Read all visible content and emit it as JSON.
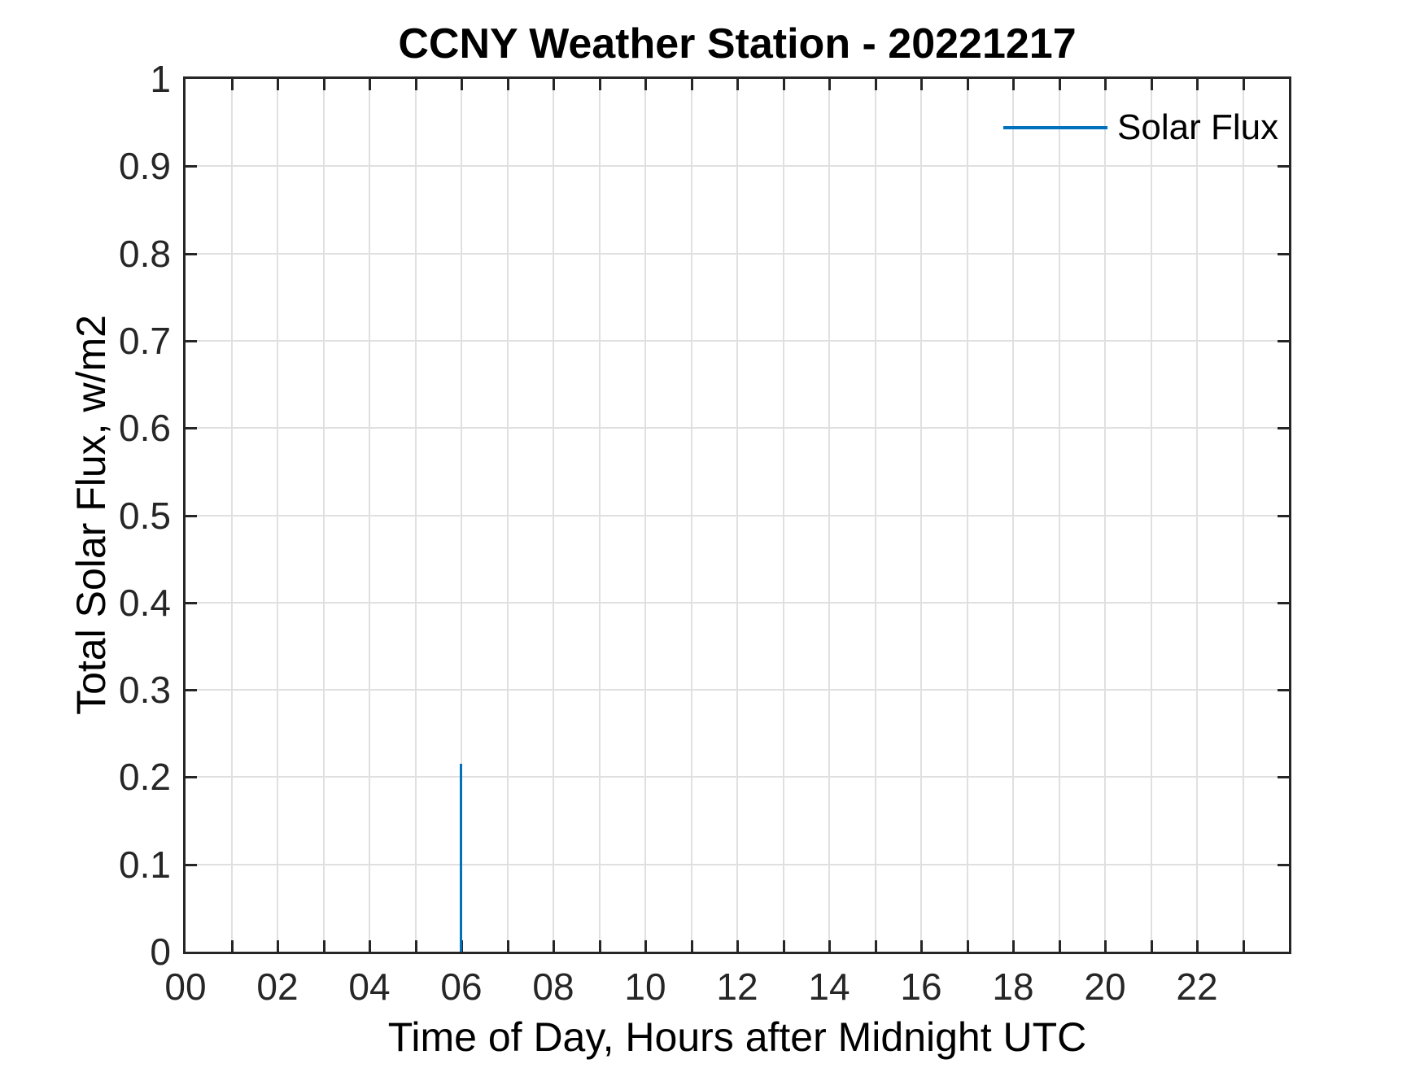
{
  "figure": {
    "background": "#ffffff",
    "axis_color": "#262626",
    "grid_color": "#e0e0e0",
    "accent_blue": "#0072BD"
  },
  "chart_data": {
    "type": "line",
    "title": "CCNY Weather Station - 20221217",
    "xlabel": "Time of Day, Hours after Midnight UTC",
    "ylabel": "Total Solar Flux, w/m2",
    "xlim": [
      0,
      24
    ],
    "ylim": [
      0,
      1
    ],
    "x_grid_step": 1,
    "y_grid_step": 0.1,
    "grid": true,
    "x_tick_values": [
      0,
      2,
      4,
      6,
      8,
      10,
      12,
      14,
      16,
      18,
      20,
      22
    ],
    "x_tick_labels": [
      "00",
      "02",
      "04",
      "06",
      "08",
      "10",
      "12",
      "14",
      "16",
      "18",
      "20",
      "22"
    ],
    "y_tick_values": [
      0,
      0.1,
      0.2,
      0.3,
      0.4,
      0.5,
      0.6,
      0.7,
      0.8,
      0.9,
      1
    ],
    "y_tick_labels": [
      "0",
      "0.1",
      "0.2",
      "0.3",
      "0.4",
      "0.5",
      "0.6",
      "0.7",
      "0.8",
      "0.9",
      "1"
    ],
    "legend": {
      "position": "northeast",
      "boxed": false,
      "entries": [
        {
          "label": "Solar Flux",
          "color": "#0072BD"
        }
      ]
    },
    "series": [
      {
        "name": "Solar Flux",
        "color": "#0072BD",
        "shape": "vertical-spike",
        "points": [
          {
            "x": 6,
            "y": 0
          },
          {
            "x": 6,
            "y": 0.215
          }
        ]
      }
    ]
  }
}
